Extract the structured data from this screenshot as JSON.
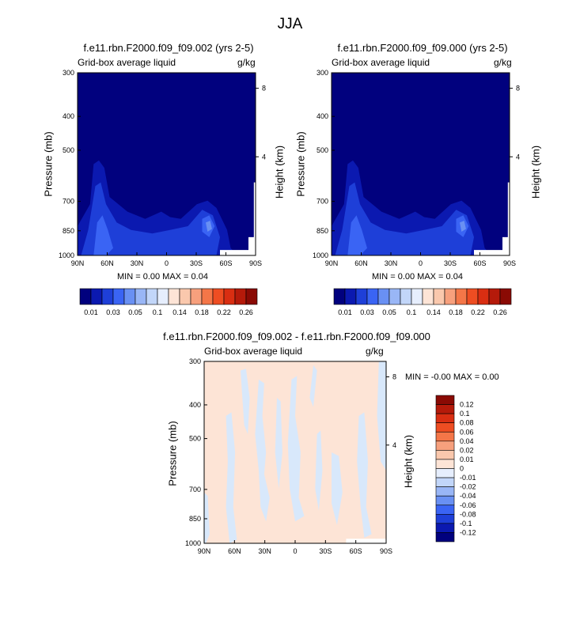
{
  "figure": {
    "title": "JJA"
  },
  "panels": [
    {
      "id": "p1",
      "title": "f.e11.rbn.F2000.f09_f09.002 (yrs 2-5)",
      "left_label": "Grid-box average liquid",
      "right_label": "g/kg",
      "ylabel": "Pressure (mb)",
      "y2label": "Height (km)",
      "minmax": "MIN =   0.00  MAX =  0.04"
    },
    {
      "id": "p2",
      "title": "f.e11.rbn.F2000.f09_f09.000 (yrs 2-5)",
      "left_label": "Grid-box average liquid",
      "right_label": "g/kg",
      "ylabel": "Pressure (mb)",
      "y2label": "Height (km)",
      "minmax": "MIN =   0.00  MAX =  0.04"
    },
    {
      "id": "p3",
      "title": "f.e11.rbn.F2000.f09_f09.002 - f.e11.rbn.F2000.f09_f09.000",
      "left_label": "Grid-box average liquid",
      "right_label": "g/kg",
      "ylabel": "Pressure (mb)",
      "y2label": "Height (km)",
      "minmax": "MIN =  -0.00  MAX =   0.00"
    }
  ],
  "chart_data": [
    {
      "type": "heatmap",
      "title": "f.e11.rbn.F2000.f09_f09.002 (yrs 2-5)",
      "xlabel": "",
      "ylabel": "Pressure (mb)",
      "y2label": "Height (km)",
      "x_ticks": [
        "90N",
        "60N",
        "30N",
        "0",
        "30S",
        "60S",
        "90S"
      ],
      "x_range": [
        90,
        -90
      ],
      "y_ticks": [
        300,
        400,
        500,
        700,
        850,
        1000
      ],
      "y_range": [
        300,
        1000
      ],
      "y_scale": "log",
      "y2_ticks": [
        4,
        8
      ],
      "min": 0.0,
      "max": 0.04,
      "contour_levels": [
        0.01,
        0.03,
        0.05,
        0.1,
        0.14,
        0.18,
        0.22,
        0.26
      ],
      "cells_min_value": 0.0,
      "cells_max_value": 0.04
    },
    {
      "type": "heatmap",
      "title": "f.e11.rbn.F2000.f09_f09.000 (yrs 2-5)",
      "xlabel": "",
      "ylabel": "Pressure (mb)",
      "y2label": "Height (km)",
      "x_ticks": [
        "90N",
        "60N",
        "30N",
        "0",
        "30S",
        "60S",
        "90S"
      ],
      "x_range": [
        90,
        -90
      ],
      "y_ticks": [
        300,
        400,
        500,
        700,
        850,
        1000
      ],
      "y_range": [
        300,
        1000
      ],
      "y_scale": "log",
      "y2_ticks": [
        4,
        8
      ],
      "min": 0.0,
      "max": 0.04,
      "contour_levels": [
        0.01,
        0.03,
        0.05,
        0.1,
        0.14,
        0.18,
        0.22,
        0.26
      ]
    },
    {
      "type": "heatmap",
      "title": "f.e11.rbn.F2000.f09_f09.002 - f.e11.rbn.F2000.f09_f09.000",
      "xlabel": "",
      "ylabel": "Pressure (mb)",
      "y2label": "Height (km)",
      "x_ticks": [
        "90N",
        "60N",
        "30N",
        "0",
        "30S",
        "60S",
        "90S"
      ],
      "x_range": [
        90,
        -90
      ],
      "y_ticks": [
        300,
        400,
        500,
        700,
        850,
        1000
      ],
      "y_range": [
        300,
        1000
      ],
      "y_scale": "log",
      "y2_ticks": [
        4,
        8
      ],
      "min": -0.0,
      "max": 0.0,
      "contour_levels": [
        -0.12,
        -0.1,
        -0.08,
        -0.06,
        -0.04,
        -0.02,
        -0.01,
        0,
        0.01,
        0.02,
        0.04,
        0.06,
        0.08,
        0.1,
        0.12
      ]
    }
  ],
  "colorbar_top": {
    "labels": [
      "0.01",
      "0.03",
      "0.05",
      "0.1",
      "0.14",
      "0.18",
      "0.22",
      "0.26"
    ],
    "colors": [
      "#01017e",
      "#0b19b0",
      "#1e3fd8",
      "#3a64f4",
      "#6990f3",
      "#99b6f6",
      "#c2d6f9",
      "#e6eefd",
      "#fde4d6",
      "#fac8ad",
      "#f7a07d",
      "#f47648",
      "#ee4d22",
      "#d92e12",
      "#b51a0a",
      "#8a0a04"
    ]
  },
  "colorbar_diff": {
    "labels": [
      "0.12",
      "0.1",
      "0.08",
      "0.06",
      "0.04",
      "0.02",
      "0.01",
      "0",
      "-0.01",
      "-0.02",
      "-0.04",
      "-0.06",
      "-0.08",
      "-0.1",
      "-0.12"
    ],
    "colors": [
      "#8a0a04",
      "#b51a0a",
      "#d92e12",
      "#ee4d22",
      "#f47648",
      "#f7a07d",
      "#fac8ad",
      "#fde4d6",
      "#e6eefd",
      "#c2d6f9",
      "#99b6f6",
      "#6990f3",
      "#3a64f4",
      "#1e3fd8",
      "#0b19b0",
      "#01017e"
    ]
  },
  "colors": {
    "base": "#01017e",
    "level1": "#0b19b0",
    "level2": "#1e3fd8",
    "level3": "#3a64f4",
    "level4": "#6990f3",
    "diff_pos": "#fde4d6",
    "diff_neg": "#d8e8fb"
  }
}
